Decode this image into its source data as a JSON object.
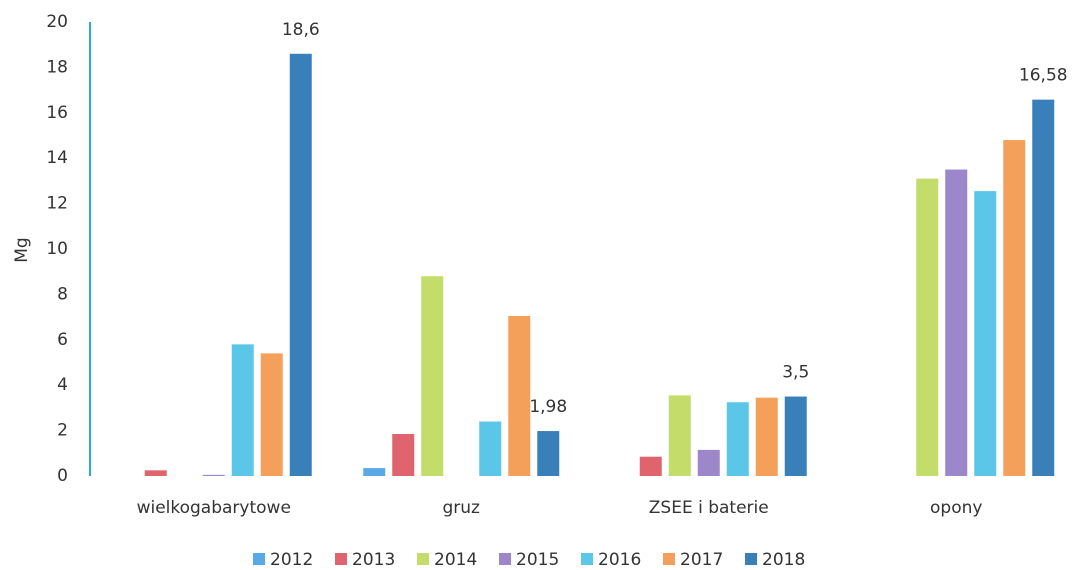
{
  "chart_data": {
    "type": "bar",
    "y_label": "Mg",
    "categories": [
      "wielkogabarytowe",
      "gruz",
      "ZSEE i baterie",
      "opony"
    ],
    "series": [
      {
        "name": "2012",
        "color": "#5aa9e6",
        "values": [
          null,
          0.35,
          null,
          null
        ]
      },
      {
        "name": "2013",
        "color": "#e0646e",
        "values": [
          0.25,
          1.85,
          0.85,
          null
        ]
      },
      {
        "name": "2014",
        "color": "#c3dc6a",
        "values": [
          null,
          8.8,
          3.55,
          13.1
        ]
      },
      {
        "name": "2015",
        "color": "#9b87c9",
        "values": [
          0.05,
          null,
          1.15,
          13.5
        ]
      },
      {
        "name": "2016",
        "color": "#5bc6e8",
        "values": [
          5.8,
          2.4,
          3.25,
          12.55
        ]
      },
      {
        "name": "2017",
        "color": "#f5a05a",
        "values": [
          5.4,
          7.05,
          3.45,
          14.8
        ]
      },
      {
        "name": "2018",
        "color": "#3a80b8",
        "values": [
          18.6,
          1.98,
          3.5,
          16.58
        ],
        "value_labels": [
          "18,6",
          "1,98",
          "3,5",
          "16,58"
        ]
      }
    ],
    "ylim": [
      0,
      20
    ],
    "yticks": [
      0,
      2,
      4,
      6,
      8,
      10,
      12,
      14,
      16,
      18,
      20
    ],
    "grid": false,
    "legend": "bottom"
  }
}
